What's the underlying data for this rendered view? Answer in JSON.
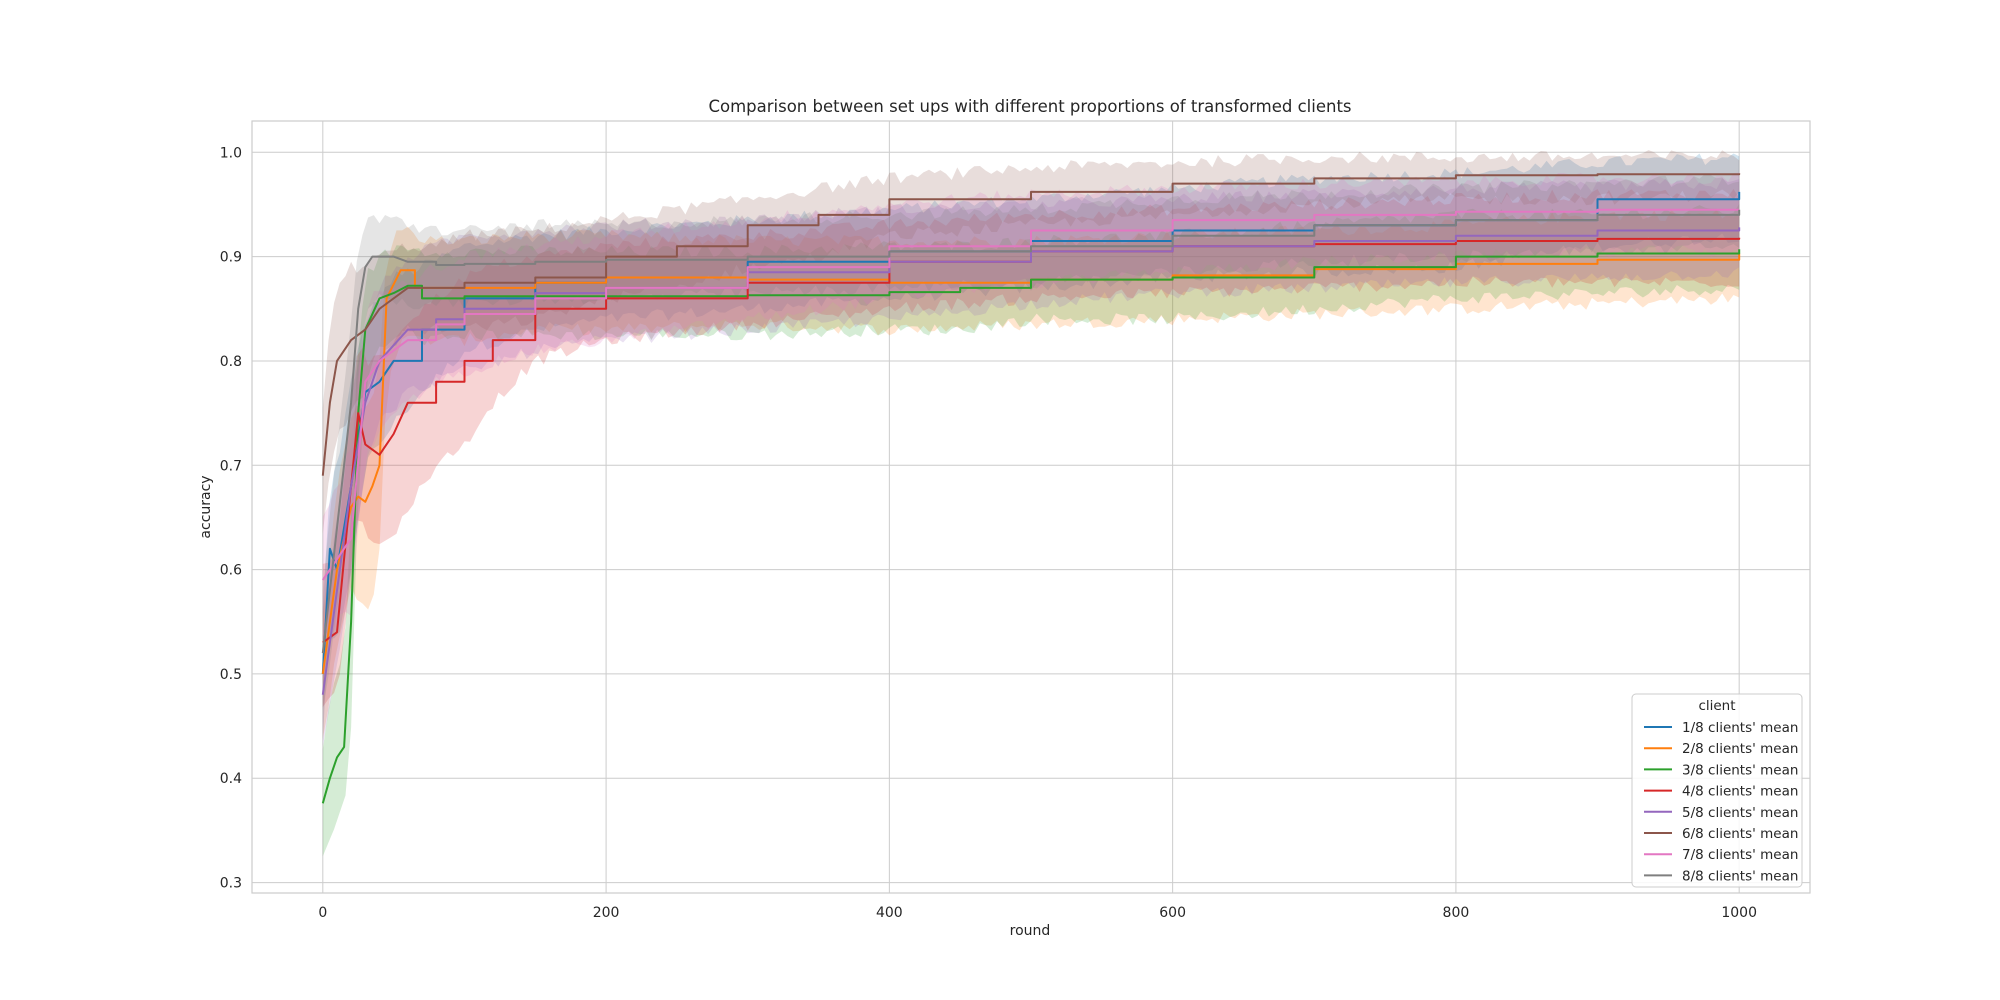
{
  "chart_data": {
    "type": "line",
    "title": "Comparison between set ups with different proportions of transformed clients",
    "xlabel": "round",
    "ylabel": "accuracy",
    "xlim": [
      -50,
      1050
    ],
    "ylim": [
      0.29,
      1.03
    ],
    "x_ticks": [
      0,
      200,
      400,
      600,
      800,
      1000
    ],
    "y_ticks": [
      0.3,
      0.4,
      0.5,
      0.6,
      0.7,
      0.8,
      0.9,
      1.0
    ],
    "x_tick_labels": [
      "0",
      "200",
      "400",
      "600",
      "800",
      "1000"
    ],
    "y_tick_labels": [
      "0.3",
      "0.4",
      "0.5",
      "0.6",
      "0.7",
      "0.8",
      "0.9",
      "1.0"
    ],
    "grid": true,
    "legend": {
      "title": "client",
      "placement": "lower-right"
    },
    "series": [
      {
        "name": "1/8 clients' mean",
        "color": "#1f77b4",
        "x": [
          0,
          5,
          10,
          20,
          30,
          40,
          50,
          70,
          100,
          150,
          200,
          300,
          400,
          500,
          600,
          700,
          800,
          900,
          1000
        ],
        "values": [
          0.5,
          0.62,
          0.6,
          0.68,
          0.77,
          0.78,
          0.8,
          0.83,
          0.86,
          0.875,
          0.88,
          0.895,
          0.905,
          0.915,
          0.925,
          0.93,
          0.935,
          0.955,
          0.962
        ],
        "upper": [
          0.56,
          0.68,
          0.7,
          0.78,
          0.84,
          0.86,
          0.88,
          0.89,
          0.91,
          0.92,
          0.925,
          0.935,
          0.945,
          0.955,
          0.965,
          0.975,
          0.98,
          0.99,
          0.995
        ],
        "lower": [
          0.44,
          0.55,
          0.52,
          0.6,
          0.7,
          0.72,
          0.74,
          0.77,
          0.81,
          0.83,
          0.84,
          0.85,
          0.86,
          0.87,
          0.88,
          0.885,
          0.89,
          0.91,
          0.92
        ]
      },
      {
        "name": "2/8 clients' mean",
        "color": "#ff7f0e",
        "x": [
          0,
          10,
          20,
          25,
          30,
          35,
          40,
          45,
          55,
          65,
          80,
          100,
          150,
          200,
          300,
          400,
          500,
          600,
          700,
          800,
          900,
          1000
        ],
        "values": [
          0.5,
          0.6,
          0.66,
          0.67,
          0.665,
          0.68,
          0.7,
          0.86,
          0.887,
          0.87,
          0.87,
          0.87,
          0.875,
          0.88,
          0.878,
          0.875,
          0.878,
          0.882,
          0.888,
          0.893,
          0.897,
          0.903
        ],
        "upper": [
          0.56,
          0.68,
          0.75,
          0.76,
          0.75,
          0.76,
          0.8,
          0.9,
          0.93,
          0.92,
          0.915,
          0.915,
          0.92,
          0.92,
          0.915,
          0.915,
          0.915,
          0.92,
          0.925,
          0.93,
          0.94,
          0.94
        ],
        "lower": [
          0.44,
          0.52,
          0.58,
          0.57,
          0.56,
          0.57,
          0.62,
          0.78,
          0.82,
          0.82,
          0.82,
          0.82,
          0.83,
          0.83,
          0.835,
          0.83,
          0.835,
          0.84,
          0.845,
          0.85,
          0.855,
          0.86
        ]
      },
      {
        "name": "3/8 clients' mean",
        "color": "#2ca02c",
        "x": [
          0,
          5,
          10,
          15,
          20,
          25,
          30,
          40,
          50,
          60,
          70,
          80,
          100,
          150,
          200,
          300,
          400,
          450,
          500,
          600,
          700,
          800,
          900,
          1000
        ],
        "values": [
          0.376,
          0.4,
          0.42,
          0.43,
          0.55,
          0.75,
          0.83,
          0.86,
          0.865,
          0.872,
          0.86,
          0.86,
          0.862,
          0.862,
          0.862,
          0.863,
          0.866,
          0.87,
          0.878,
          0.88,
          0.89,
          0.9,
          0.903,
          0.907
        ],
        "upper": [
          0.43,
          0.47,
          0.5,
          0.52,
          0.66,
          0.82,
          0.88,
          0.9,
          0.905,
          0.91,
          0.905,
          0.905,
          0.905,
          0.905,
          0.905,
          0.905,
          0.91,
          0.91,
          0.915,
          0.92,
          0.93,
          0.94,
          0.94,
          0.945
        ],
        "lower": [
          0.325,
          0.34,
          0.36,
          0.37,
          0.45,
          0.68,
          0.78,
          0.81,
          0.82,
          0.83,
          0.82,
          0.82,
          0.825,
          0.825,
          0.825,
          0.825,
          0.83,
          0.83,
          0.84,
          0.84,
          0.85,
          0.86,
          0.865,
          0.87
        ]
      },
      {
        "name": "4/8 clients' mean",
        "color": "#d62728",
        "x": [
          0,
          10,
          20,
          25,
          30,
          40,
          50,
          60,
          80,
          100,
          120,
          150,
          200,
          300,
          400,
          500,
          600,
          700,
          800,
          900,
          1000
        ],
        "values": [
          0.53,
          0.54,
          0.68,
          0.75,
          0.72,
          0.71,
          0.73,
          0.76,
          0.78,
          0.8,
          0.82,
          0.85,
          0.86,
          0.875,
          0.895,
          0.905,
          0.91,
          0.912,
          0.915,
          0.917,
          0.918
        ],
        "upper": [
          0.6,
          0.62,
          0.76,
          0.82,
          0.8,
          0.8,
          0.82,
          0.84,
          0.86,
          0.88,
          0.89,
          0.9,
          0.91,
          0.92,
          0.93,
          0.94,
          0.945,
          0.95,
          0.955,
          0.96,
          0.96
        ],
        "lower": [
          0.47,
          0.48,
          0.6,
          0.66,
          0.64,
          0.62,
          0.63,
          0.66,
          0.7,
          0.72,
          0.76,
          0.8,
          0.82,
          0.835,
          0.85,
          0.86,
          0.865,
          0.87,
          0.875,
          0.875,
          0.876
        ]
      },
      {
        "name": "5/8 clients' mean",
        "color": "#9467bd",
        "x": [
          0,
          10,
          20,
          30,
          40,
          60,
          80,
          100,
          150,
          200,
          300,
          400,
          500,
          600,
          700,
          800,
          900,
          1000
        ],
        "values": [
          0.48,
          0.58,
          0.68,
          0.76,
          0.8,
          0.83,
          0.84,
          0.85,
          0.865,
          0.87,
          0.885,
          0.895,
          0.905,
          0.91,
          0.915,
          0.92,
          0.925,
          0.928
        ],
        "upper": [
          0.54,
          0.65,
          0.76,
          0.83,
          0.87,
          0.9,
          0.91,
          0.92,
          0.925,
          0.93,
          0.935,
          0.945,
          0.95,
          0.955,
          0.96,
          0.965,
          0.968,
          0.97
        ],
        "lower": [
          0.43,
          0.51,
          0.6,
          0.7,
          0.74,
          0.77,
          0.78,
          0.79,
          0.81,
          0.82,
          0.83,
          0.84,
          0.855,
          0.865,
          0.87,
          0.875,
          0.88,
          0.885
        ]
      },
      {
        "name": "6/8 clients' mean",
        "color": "#8c564b",
        "x": [
          0,
          5,
          10,
          20,
          30,
          40,
          60,
          80,
          100,
          150,
          200,
          250,
          300,
          350,
          400,
          500,
          600,
          700,
          800,
          900,
          1000
        ],
        "values": [
          0.69,
          0.76,
          0.8,
          0.82,
          0.83,
          0.85,
          0.87,
          0.87,
          0.875,
          0.88,
          0.9,
          0.91,
          0.93,
          0.94,
          0.955,
          0.962,
          0.97,
          0.975,
          0.978,
          0.979,
          0.98
        ],
        "upper": [
          0.76,
          0.83,
          0.87,
          0.89,
          0.89,
          0.9,
          0.91,
          0.91,
          0.92,
          0.925,
          0.935,
          0.945,
          0.955,
          0.965,
          0.975,
          0.985,
          0.99,
          0.995,
          0.995,
          0.996,
          0.997
        ],
        "lower": [
          0.63,
          0.69,
          0.73,
          0.75,
          0.77,
          0.8,
          0.83,
          0.83,
          0.83,
          0.84,
          0.86,
          0.87,
          0.89,
          0.9,
          0.92,
          0.93,
          0.94,
          0.95,
          0.955,
          0.955,
          0.96
        ]
      },
      {
        "name": "7/8 clients' mean",
        "color": "#e377c2",
        "x": [
          0,
          10,
          20,
          30,
          40,
          60,
          80,
          100,
          150,
          200,
          300,
          400,
          500,
          600,
          700,
          800,
          900,
          1000
        ],
        "values": [
          0.59,
          0.61,
          0.63,
          0.78,
          0.8,
          0.82,
          0.835,
          0.845,
          0.86,
          0.87,
          0.89,
          0.91,
          0.925,
          0.935,
          0.94,
          0.943,
          0.945,
          0.945
        ],
        "upper": [
          0.65,
          0.68,
          0.72,
          0.85,
          0.87,
          0.88,
          0.89,
          0.9,
          0.91,
          0.92,
          0.935,
          0.95,
          0.96,
          0.965,
          0.97,
          0.972,
          0.975,
          0.975
        ],
        "lower": [
          0.53,
          0.55,
          0.56,
          0.71,
          0.73,
          0.76,
          0.78,
          0.79,
          0.81,
          0.82,
          0.84,
          0.86,
          0.875,
          0.885,
          0.895,
          0.9,
          0.905,
          0.905
        ]
      },
      {
        "name": "8/8 clients' mean",
        "color": "#7f7f7f",
        "x": [
          0,
          10,
          20,
          25,
          30,
          35,
          40,
          50,
          60,
          80,
          100,
          150,
          200,
          300,
          400,
          500,
          600,
          700,
          800,
          900,
          1000
        ],
        "values": [
          0.52,
          0.64,
          0.76,
          0.85,
          0.89,
          0.9,
          0.9,
          0.9,
          0.895,
          0.892,
          0.893,
          0.895,
          0.897,
          0.9,
          0.905,
          0.91,
          0.92,
          0.93,
          0.935,
          0.94,
          0.945
        ],
        "upper": [
          0.58,
          0.72,
          0.84,
          0.91,
          0.93,
          0.935,
          0.935,
          0.935,
          0.93,
          0.925,
          0.925,
          0.93,
          0.93,
          0.935,
          0.94,
          0.945,
          0.955,
          0.96,
          0.965,
          0.97,
          0.975
        ],
        "lower": [
          0.46,
          0.56,
          0.68,
          0.79,
          0.85,
          0.86,
          0.86,
          0.86,
          0.855,
          0.855,
          0.855,
          0.86,
          0.86,
          0.865,
          0.87,
          0.875,
          0.885,
          0.895,
          0.9,
          0.905,
          0.91
        ]
      }
    ]
  }
}
